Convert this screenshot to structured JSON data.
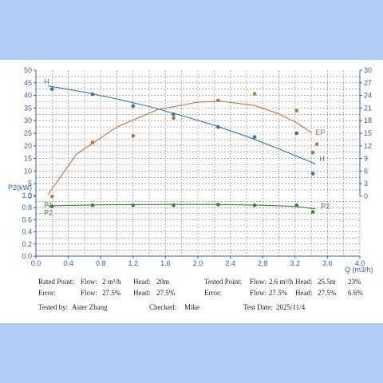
{
  "colors": {
    "head": "#3b6ea5",
    "ep": "#b5753f",
    "p2": "#3f7d3f",
    "grid": "#7a7a7a",
    "axis": "#3a5f9c",
    "page_bg": "#b3ccf5"
  },
  "chart_data": {
    "type": "line",
    "xlabel": "Q (m3/h)",
    "x_ticks": [
      "0.0",
      "0.4",
      "0.8",
      "1.2",
      "1.6",
      "2.0",
      "2.4",
      "2.8",
      "3.2",
      "3.6",
      "4.0"
    ],
    "xlim": [
      0,
      4.0
    ],
    "head_axis": {
      "label": "",
      "ticks": [
        "0",
        "5",
        "10",
        "15",
        "20",
        "25",
        "30",
        "35",
        "40",
        "45",
        "50"
      ],
      "ylim": [
        0,
        50
      ]
    },
    "ep_axis": {
      "label": "",
      "ticks": [
        "0",
        "3",
        "6",
        "9",
        "12",
        "15",
        "18",
        "21",
        "24",
        "27",
        "30"
      ],
      "ylim": [
        0,
        30
      ]
    },
    "p2_axis": {
      "label": "P2(kW)",
      "ticks": [
        "0.0",
        "0.2",
        "0.4",
        "0.6",
        "0.8",
        "1.0"
      ],
      "ylim": [
        0,
        1.0
      ]
    },
    "grid": true,
    "series": [
      {
        "name": "H",
        "axis": "head",
        "curve": [
          [
            0.15,
            43.8
          ],
          [
            0.6,
            41.3
          ],
          [
            1.0,
            38.6
          ],
          [
            1.4,
            35.6
          ],
          [
            1.8,
            32.0
          ],
          [
            2.2,
            28.2
          ],
          [
            2.6,
            23.8
          ],
          [
            3.0,
            18.8
          ],
          [
            3.4,
            13.5
          ],
          [
            3.45,
            12.8
          ]
        ],
        "points": [
          [
            0.2,
            42.5
          ],
          [
            0.7,
            40.5
          ],
          [
            1.2,
            35.8
          ],
          [
            1.7,
            32.5
          ],
          [
            2.25,
            27.5
          ],
          [
            2.7,
            23.5
          ],
          [
            3.22,
            25
          ],
          [
            3.42,
            9
          ]
        ]
      },
      {
        "name": "EP",
        "axis": "ep",
        "curve": [
          [
            0.15,
            0.4
          ],
          [
            0.5,
            10.0
          ],
          [
            1.0,
            16.5
          ],
          [
            1.5,
            20.6
          ],
          [
            2.0,
            22.4
          ],
          [
            2.3,
            22.6
          ],
          [
            2.7,
            21.6
          ],
          [
            3.0,
            19.6
          ],
          [
            3.2,
            17.7
          ],
          [
            3.4,
            15.2
          ]
        ],
        "points": [
          [
            0.2,
            0
          ],
          [
            0.7,
            12.8
          ],
          [
            1.2,
            14.4
          ],
          [
            1.7,
            18.6
          ],
          [
            2.25,
            22.8
          ],
          [
            2.7,
            24.4
          ],
          [
            3.22,
            20.4
          ],
          [
            3.42,
            10.4
          ],
          [
            3.47,
            12.4
          ]
        ]
      },
      {
        "name": "P2",
        "axis": "p2",
        "curve": [
          [
            0.15,
            0.83
          ],
          [
            0.8,
            0.846
          ],
          [
            1.6,
            0.852
          ],
          [
            2.2,
            0.852
          ],
          [
            2.8,
            0.84
          ],
          [
            3.2,
            0.82
          ],
          [
            3.45,
            0.78
          ]
        ],
        "points": [
          [
            0.2,
            0.82
          ],
          [
            0.7,
            0.84
          ],
          [
            1.2,
            0.84
          ],
          [
            1.7,
            0.84
          ],
          [
            2.25,
            0.85
          ],
          [
            2.7,
            0.84
          ],
          [
            3.22,
            0.84
          ],
          [
            3.42,
            0.73
          ]
        ]
      }
    ],
    "curve_labels": [
      {
        "text": "H",
        "series": "H",
        "at": [
          0.1,
          44.5
        ]
      },
      {
        "text": "H",
        "series": "H",
        "at": [
          3.5,
          14
        ]
      },
      {
        "text": "EP",
        "series": "EP",
        "at": [
          3.45,
          14.6
        ]
      },
      {
        "text": "P2",
        "series": "P2",
        "at": [
          3.52,
          0.78
        ]
      },
      {
        "text": "P1",
        "series": "P2",
        "at": [
          0.1,
          0.8
        ]
      },
      {
        "text": "P2",
        "series": "P2",
        "at": [
          0.1,
          0.68
        ]
      }
    ]
  },
  "info": {
    "rated_point_label": "Rated Point:",
    "rated_flow_label": "Flow:",
    "rated_flow_value": "2 m³/h",
    "rated_head_label": "Head:",
    "rated_head_value": "20m",
    "tested_point_label": "Tested Point:",
    "tested_flow_label": "Flow:",
    "tested_flow_value": "2.6 m³/h",
    "tested_head_label": "Head:",
    "tested_head_value": "25.5m",
    "tested_pct": "23%",
    "error_left_label": "Error:",
    "error_left_flow_label": "Flow:",
    "error_left_flow_value": "27.5%",
    "error_left_head_label": "Head:",
    "error_left_head_value": "27.5%",
    "error_right_label": "Error:",
    "error_right_flow_label": "Flow:",
    "error_right_flow_value": "27.5%",
    "error_right_head_label": "Head:",
    "error_right_head_value": "27.5%",
    "error_right_pct": "6.6%",
    "tested_by_label": "Tested by:",
    "tested_by_value": "Aster Zhang",
    "checked_label": "Checked:",
    "checked_value": "Mike",
    "test_date_label": "Test Date:",
    "test_date_value": "2025/11/4"
  }
}
